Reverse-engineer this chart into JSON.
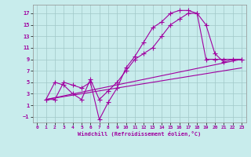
{
  "xlabel": "Windchill (Refroidissement éolien,°C)",
  "bg_color": "#c8ecec",
  "grid_color": "#a0c8c8",
  "line_color": "#a000a0",
  "xlim": [
    -0.5,
    23.5
  ],
  "ylim": [
    -2,
    18.5
  ],
  "xticks": [
    0,
    1,
    2,
    3,
    4,
    5,
    6,
    7,
    8,
    9,
    10,
    11,
    12,
    13,
    14,
    15,
    16,
    17,
    18,
    19,
    20,
    21,
    22,
    23
  ],
  "yticks": [
    -1,
    1,
    3,
    5,
    7,
    9,
    11,
    13,
    15,
    17
  ],
  "line1_x": [
    1,
    2,
    3,
    4,
    5,
    6,
    7,
    8,
    9,
    10,
    11,
    12,
    13,
    14,
    15,
    16,
    17,
    18,
    19,
    20,
    21,
    22,
    23
  ],
  "line1_y": [
    2,
    2,
    5,
    4.5,
    4,
    5,
    -1.5,
    1.5,
    4,
    7.5,
    9.5,
    12,
    14.5,
    15.5,
    17,
    17.5,
    17.5,
    17,
    15,
    10,
    8.5,
    9,
    9
  ],
  "line2_x": [
    1,
    2,
    3,
    4,
    5,
    6,
    7,
    8,
    9,
    10,
    11,
    12,
    13,
    14,
    15,
    16,
    17,
    18,
    19,
    20,
    21,
    22,
    23
  ],
  "line2_y": [
    2,
    5,
    4.5,
    3,
    2,
    5.5,
    2,
    3.5,
    5,
    7,
    9,
    10,
    11,
    13,
    15,
    16,
    17,
    17,
    9,
    9,
    9,
    9,
    9
  ],
  "line3_x": [
    1,
    23
  ],
  "line3_y": [
    2,
    9.0
  ],
  "line4_x": [
    1,
    23
  ],
  "line4_y": [
    2,
    7.5
  ],
  "marker_x1": [
    1,
    2,
    3,
    5,
    6,
    7,
    8,
    9,
    10,
    11,
    12,
    13,
    14,
    15,
    16,
    17,
    18,
    19,
    20,
    21,
    22,
    23
  ],
  "marker_y1": [
    2,
    2,
    5,
    4,
    5,
    -1.5,
    1.5,
    4,
    7.5,
    9.5,
    12,
    14.5,
    15.5,
    17,
    17.5,
    17.5,
    17,
    15,
    10,
    8.5,
    9,
    9
  ],
  "marker_x2": [
    2,
    3,
    4,
    6,
    7,
    8,
    9,
    10,
    11,
    12,
    13,
    14,
    15,
    16,
    17,
    18,
    20,
    21,
    22,
    23
  ],
  "marker_y2": [
    5,
    4.5,
    3,
    5.5,
    2,
    3.5,
    5,
    7,
    9,
    10,
    11,
    13,
    15,
    16,
    17,
    17,
    9,
    9,
    9,
    9
  ]
}
